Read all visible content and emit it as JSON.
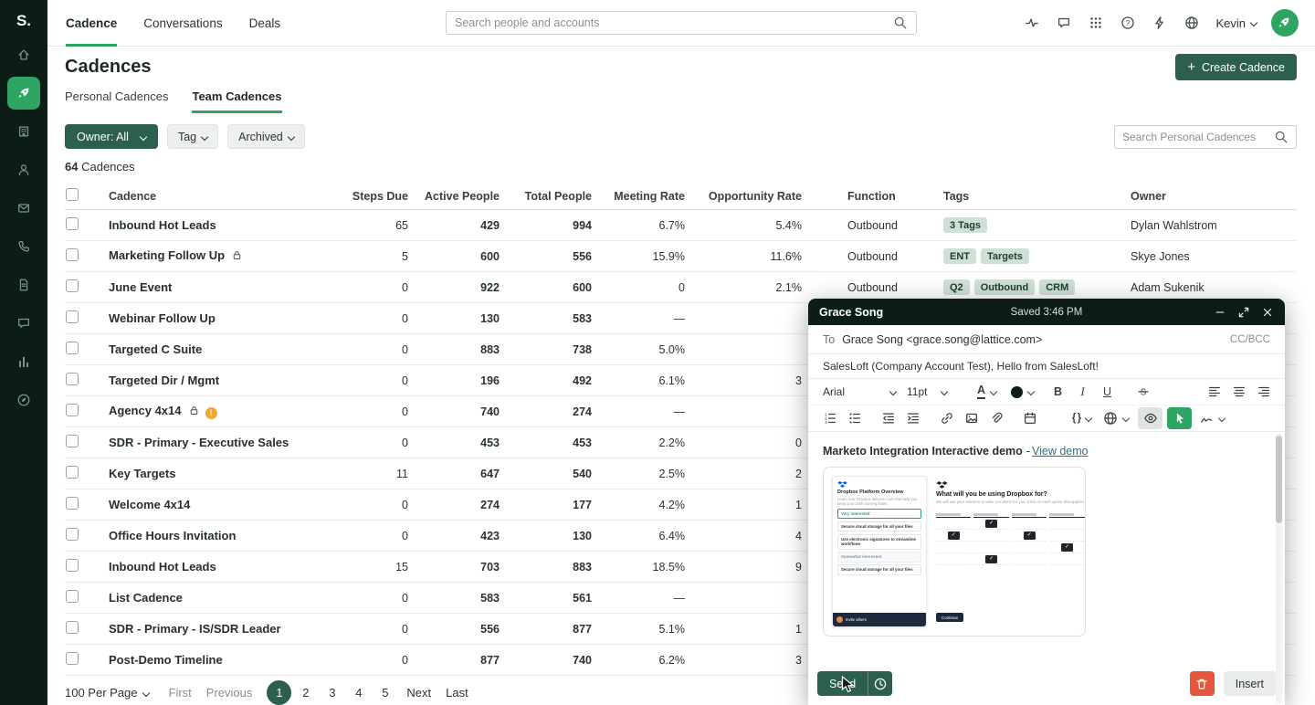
{
  "brand": {
    "logo_text": "S."
  },
  "topnav": {
    "items": [
      {
        "label": "Cadence",
        "active": true
      },
      {
        "label": "Conversations",
        "active": false
      },
      {
        "label": "Deals",
        "active": false
      }
    ],
    "search_placeholder": "Search people and accounts",
    "user_name": "Kevin"
  },
  "sidebar": {
    "items": [
      {
        "icon": "home-icon",
        "active": false
      },
      {
        "icon": "rocket-icon",
        "active": true
      },
      {
        "icon": "building-icon",
        "active": false
      },
      {
        "icon": "people-icon",
        "active": false
      },
      {
        "icon": "mail-icon",
        "active": false
      },
      {
        "icon": "phone-icon",
        "active": false
      },
      {
        "icon": "document-icon",
        "active": false
      },
      {
        "icon": "chat-icon",
        "active": false
      },
      {
        "icon": "bar-chart-icon",
        "active": false
      },
      {
        "icon": "compass-icon",
        "active": false
      }
    ]
  },
  "icons": {
    "topbar_right": [
      "activity-icon",
      "comment-icon",
      "apps-grid-icon",
      "help-icon",
      "lightning-icon",
      "globe-icon"
    ],
    "toolbar_row1": [
      "font-family-select",
      "font-size-select",
      "font-color-icon",
      "highlight-color-icon",
      "bold-button",
      "italic-button",
      "underline-button",
      "strikethrough-icon",
      "align-left-icon",
      "align-center-icon",
      "align-right-icon"
    ],
    "toolbar_row2": [
      "ordered-list-icon",
      "bullet-list-icon",
      "outdent-icon",
      "indent-icon",
      "link-icon",
      "image-icon",
      "paperclip-icon",
      "calendar-icon",
      "dynamic-fields-icon",
      "globe-icon",
      "preview-eye-icon",
      "pointer-icon",
      "signature-icon"
    ]
  },
  "page": {
    "title": "Cadences",
    "create_button": "Create Cadence",
    "tabs": [
      {
        "label": "Personal Cadences",
        "active": false
      },
      {
        "label": "Team Cadences",
        "active": true
      }
    ],
    "filters": {
      "owner": "Owner: All",
      "tag": "Tag",
      "archived": "Archived"
    },
    "search_placeholder": "Search Personal Cadences",
    "count_number": "64",
    "count_label": "Cadences"
  },
  "table": {
    "headers": [
      "Cadence",
      "Steps Due",
      "Active People",
      "Total People",
      "Meeting Rate",
      "Opportunity Rate",
      "Function",
      "Tags",
      "Owner"
    ],
    "rows": [
      {
        "name": "Inbound Hot Leads",
        "lock": false,
        "warning": false,
        "steps_due": "65",
        "active_people": "429",
        "total_people": "994",
        "meeting_rate": "6.7%",
        "opportunity_rate": "5.4%",
        "function": "Outbound",
        "tags": [
          "3 Tags"
        ],
        "owner": "Dylan Wahlstrom"
      },
      {
        "name": "Marketing Follow Up",
        "lock": true,
        "warning": false,
        "steps_due": "5",
        "active_people": "600",
        "total_people": "556",
        "meeting_rate": "15.9%",
        "opportunity_rate": "11.6%",
        "function": "Outbound",
        "tags": [
          "ENT",
          "Targets"
        ],
        "owner": "Skye Jones"
      },
      {
        "name": "June Event",
        "lock": false,
        "warning": false,
        "steps_due": "0",
        "active_people": "922",
        "total_people": "600",
        "meeting_rate": "0",
        "opportunity_rate": "2.1%",
        "function": "Outbound",
        "tags": [
          "Q2",
          "Outbound",
          "CRM"
        ],
        "owner": "Adam Sukenik"
      },
      {
        "name": "Webinar Follow Up",
        "lock": false,
        "warning": false,
        "steps_due": "0",
        "active_people": "130",
        "total_people": "583",
        "meeting_rate": "—",
        "opportunity_rate": "",
        "function": "",
        "tags": [],
        "owner": ""
      },
      {
        "name": "Targeted C Suite",
        "lock": false,
        "warning": false,
        "steps_due": "0",
        "active_people": "883",
        "total_people": "738",
        "meeting_rate": "5.0%",
        "opportunity_rate": "",
        "function": "",
        "tags": [],
        "owner": ""
      },
      {
        "name": "Targeted Dir / Mgmt",
        "lock": false,
        "warning": false,
        "steps_due": "0",
        "active_people": "196",
        "total_people": "492",
        "meeting_rate": "6.1%",
        "opportunity_rate": "3",
        "function": "",
        "tags": [],
        "owner": ""
      },
      {
        "name": "Agency 4x14",
        "lock": true,
        "warning": true,
        "steps_due": "0",
        "active_people": "740",
        "total_people": "274",
        "meeting_rate": "—",
        "opportunity_rate": "",
        "function": "",
        "tags": [],
        "owner": ""
      },
      {
        "name": "SDR - Primary - Executive Sales",
        "lock": false,
        "warning": false,
        "steps_due": "0",
        "active_people": "453",
        "total_people": "453",
        "meeting_rate": "2.2%",
        "opportunity_rate": "0",
        "function": "",
        "tags": [],
        "owner": ""
      },
      {
        "name": "Key Targets",
        "lock": false,
        "warning": false,
        "steps_due": "11",
        "active_people": "647",
        "total_people": "540",
        "meeting_rate": "2.5%",
        "opportunity_rate": "2",
        "function": "",
        "tags": [],
        "owner": ""
      },
      {
        "name": "Welcome 4x14",
        "lock": false,
        "warning": false,
        "steps_due": "0",
        "active_people": "274",
        "total_people": "177",
        "meeting_rate": "4.2%",
        "opportunity_rate": "1",
        "function": "",
        "tags": [],
        "owner": ""
      },
      {
        "name": "Office Hours Invitation",
        "lock": false,
        "warning": false,
        "steps_due": "0",
        "active_people": "423",
        "total_people": "130",
        "meeting_rate": "6.4%",
        "opportunity_rate": "4",
        "function": "",
        "tags": [],
        "owner": ""
      },
      {
        "name": "Inbound Hot Leads",
        "lock": false,
        "warning": false,
        "steps_due": "15",
        "active_people": "703",
        "total_people": "883",
        "meeting_rate": "18.5%",
        "opportunity_rate": "9",
        "function": "",
        "tags": [],
        "owner": ""
      },
      {
        "name": "List Cadence",
        "lock": false,
        "warning": false,
        "steps_due": "0",
        "active_people": "583",
        "total_people": "561",
        "meeting_rate": "—",
        "opportunity_rate": "",
        "function": "",
        "tags": [],
        "owner": ""
      },
      {
        "name": "SDR - Primary - IS/SDR Leader",
        "lock": false,
        "warning": false,
        "steps_due": "0",
        "active_people": "556",
        "total_people": "877",
        "meeting_rate": "5.1%",
        "opportunity_rate": "1",
        "function": "",
        "tags": [],
        "owner": ""
      },
      {
        "name": "Post-Demo Timeline",
        "lock": false,
        "warning": false,
        "steps_due": "0",
        "active_people": "877",
        "total_people": "740",
        "meeting_rate": "6.2%",
        "opportunity_rate": "3",
        "function": "",
        "tags": [],
        "owner": ""
      }
    ]
  },
  "pagination": {
    "per_page": "100 Per Page",
    "first": "First",
    "previous": "Previous",
    "pages": [
      "1",
      "2",
      "3",
      "4",
      "5"
    ],
    "active_page": "1",
    "next": "Next",
    "last": "Last"
  },
  "compose": {
    "title": "Grace Song",
    "saved_status": "Saved 3:46 PM",
    "to_label": "To",
    "to_value": "Grace Song <grace.song@lattice.com>",
    "cc_bcc": "CC/BCC",
    "subject": "SalesLoft (Company Account Test), Hello from SalesLoft!",
    "toolbar": {
      "font_family": "Arial",
      "font_size": "11pt",
      "color_label": "A",
      "bold": "B",
      "italic": "I",
      "underline": "U",
      "braces": "{ }"
    },
    "body": {
      "link_title": "Marketo Integration Interactive demo",
      "separator": "-",
      "link_label": "View demo"
    },
    "demo": {
      "left_title": "Dropbox Platform Overview",
      "left_subtitle": "Learn how Dropbox delivers tools that help you keep your work moving faster.",
      "item_1": "Very interested",
      "item_2": "Secure cloud storage for all your files",
      "item_3": "Use electronic signatures to streamline workflows",
      "item_4": "Somewhat interested",
      "item_5": "Secure cloud storage for all your files",
      "invite_label": "Invite others",
      "right_title": "What will you be using Dropbox for?",
      "right_subtitle": "We will use your answers to tailor our demo for you. Click on each option that applies.",
      "continue_label": "Continue"
    },
    "send_label": "Send",
    "insert_label": "Insert"
  },
  "colors": {
    "accent_green": "#2ea562",
    "button_dark_green": "#2d5f4e",
    "danger_red": "#e4573d",
    "sidebar_bg": "#0c1d16",
    "tag_bg": "#cfe0d6",
    "warning_orange": "#f0a82c"
  }
}
